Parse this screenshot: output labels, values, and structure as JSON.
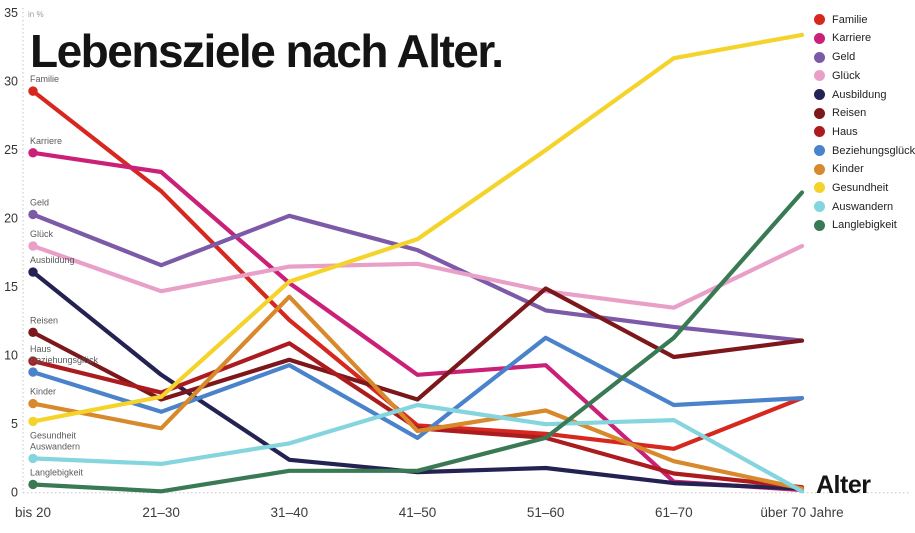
{
  "title": "Lebensziele nach Alter.",
  "axis": {
    "y_unit_label": "in %",
    "x_axis_label": "Alter",
    "y_ticks": [
      0,
      5,
      10,
      15,
      20,
      25,
      30,
      35
    ]
  },
  "chart_data": {
    "type": "line",
    "title": "Lebensziele nach Alter.",
    "xlabel": "Alter",
    "ylabel": "in %",
    "ylim": [
      0,
      35
    ],
    "grid": false,
    "legend_position": "right",
    "categories": [
      "bis 20",
      "21–30",
      "31–40",
      "41–50",
      "51–60",
      "61–70",
      "über 70 Jahre"
    ],
    "series": [
      {
        "name": "Familie",
        "color": "#d7281f",
        "values": [
          29.3,
          22.0,
          12.6,
          4.9,
          4.3,
          3.2,
          6.9
        ]
      },
      {
        "name": "Karriere",
        "color": "#cb2077",
        "values": [
          24.8,
          23.4,
          15.3,
          8.6,
          9.3,
          0.8,
          0.2
        ]
      },
      {
        "name": "Geld",
        "color": "#7c5aa8",
        "values": [
          20.3,
          16.6,
          20.2,
          17.7,
          13.3,
          12.1,
          11.1
        ]
      },
      {
        "name": "Glück",
        "color": "#e9a0c8",
        "values": [
          18.0,
          14.7,
          16.5,
          16.7,
          14.7,
          13.5,
          18.0
        ]
      },
      {
        "name": "Ausbildung",
        "color": "#232253",
        "values": [
          16.1,
          8.6,
          2.4,
          1.5,
          1.8,
          0.7,
          0.3
        ]
      },
      {
        "name": "Reisen",
        "color": "#7c181b",
        "values": [
          11.7,
          6.8,
          9.7,
          6.8,
          14.9,
          9.9,
          11.1
        ]
      },
      {
        "name": "Haus",
        "color": "#ac1c1e",
        "values": [
          9.6,
          7.3,
          10.9,
          4.7,
          4.0,
          1.4,
          0.4
        ]
      },
      {
        "name": "Beziehungsglück",
        "color": "#4a82cb",
        "values": [
          8.8,
          5.9,
          9.3,
          4.0,
          11.3,
          6.4,
          6.9
        ]
      },
      {
        "name": "Kinder",
        "color": "#d8892b",
        "values": [
          6.5,
          4.7,
          14.3,
          4.5,
          6.0,
          2.3,
          0.3
        ]
      },
      {
        "name": "Gesundheit",
        "color": "#f4d32a",
        "values": [
          5.2,
          7.0,
          15.4,
          18.5,
          25.0,
          31.7,
          33.4
        ],
        "label_position": "below"
      },
      {
        "name": "Auswandern",
        "color": "#84d5dd",
        "values": [
          2.5,
          2.1,
          3.6,
          6.4,
          5.0,
          5.3,
          0.1
        ]
      },
      {
        "name": "Langlebigkeit",
        "color": "#397a55",
        "values": [
          0.6,
          0.1,
          1.6,
          1.6,
          4.0,
          11.3,
          21.9
        ]
      }
    ]
  }
}
